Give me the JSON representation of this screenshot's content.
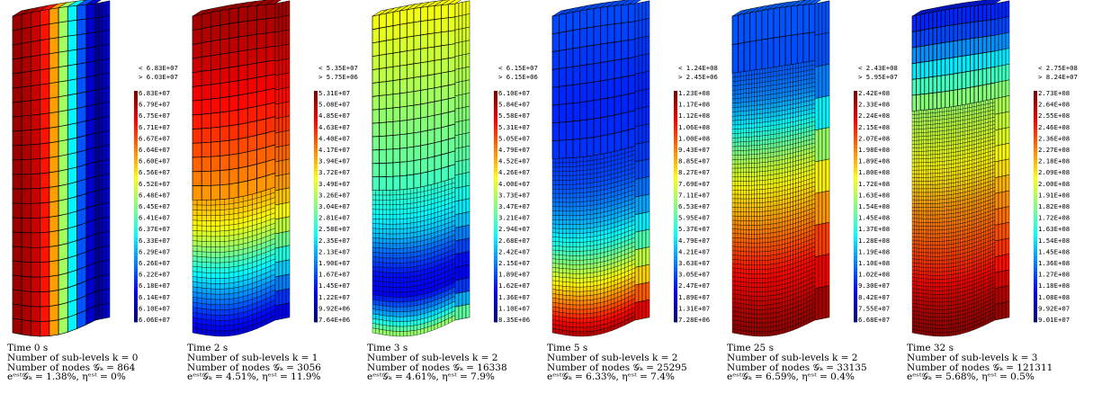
{
  "panels": [
    {
      "time": "Time 0 s",
      "sublevels": "Number of sub-levels k = 0",
      "nodes": "Number of nodes 𝒢ₖ = 864",
      "errors": "eᵉˢᵗ𝒢ₖ = 1.38%, ηᵉˢᵗ = 0%",
      "legend_over": "< 6.83E+07",
      "legend_under": "> 6.03E+07",
      "legend_ticks": [
        "6.83E+07",
        "6.79E+07",
        "6.75E+07",
        "6.71E+07",
        "6.67E+07",
        "6.64E+07",
        "6.60E+07",
        "6.56E+07",
        "6.52E+07",
        "6.48E+07",
        "6.45E+07",
        "6.41E+07",
        "6.37E+07",
        "6.33E+07",
        "6.29E+07",
        "6.26E+07",
        "6.22E+07",
        "6.18E+07",
        "6.14E+07",
        "6.10E+07",
        "6.06E+07"
      ]
    },
    {
      "time": "Time 2 s",
      "sublevels": "Number of sub-levels k = 1",
      "nodes": "Number of nodes 𝒢ₖ = 3056",
      "errors": "eᵉˢᵗ𝒢ₖ = 4.51%, ηᵉˢᵗ = 11.9%",
      "legend_over": "< 5.35E+07",
      "legend_under": "> 5.75E+06",
      "legend_ticks": [
        "5.31E+07",
        "5.08E+07",
        "4.85E+07",
        "4.63E+07",
        "4.40E+07",
        "4.17E+07",
        "3.94E+07",
        "3.72E+07",
        "3.49E+07",
        "3.26E+07",
        "3.04E+07",
        "2.81E+07",
        "2.58E+07",
        "2.35E+07",
        "2.13E+07",
        "1.90E+07",
        "1.67E+07",
        "1.45E+07",
        "1.22E+07",
        "9.92E+06",
        "7.64E+06"
      ]
    },
    {
      "time": "Time 3 s",
      "sublevels": "Number of sub-levels k = 2",
      "nodes": "Number of nodes 𝒢ₖ = 16338",
      "errors": "eᵉˢᵗ𝒢ₖ = 4.61%, ηᵉˢᵗ = 7.9%",
      "legend_over": "< 6.15E+07",
      "legend_under": "> 6.15E+06",
      "legend_ticks": [
        "6.10E+07",
        "5.84E+07",
        "5.58E+07",
        "5.31E+07",
        "5.05E+07",
        "4.79E+07",
        "4.52E+07",
        "4.26E+07",
        "4.00E+07",
        "3.73E+07",
        "3.47E+07",
        "3.21E+07",
        "2.94E+07",
        "2.68E+07",
        "2.42E+07",
        "2.15E+07",
        "1.89E+07",
        "1.62E+07",
        "1.36E+07",
        "1.10E+07",
        "8.35E+06"
      ]
    },
    {
      "time": "Time 5 s",
      "sublevels": "Number of sub-levels k = 2",
      "nodes": "Number of nodes 𝒢ₖ = 25295",
      "errors": "eᵉˢᵗ𝒢ₖ = 6.33%, ηᵉˢᵗ = 7.4%",
      "legend_over": "< 1.24E+08",
      "legend_under": "> 2.45E+06",
      "legend_ticks": [
        "1.23E+08",
        "1.17E+08",
        "1.12E+08",
        "1.06E+08",
        "1.00E+08",
        "9.43E+07",
        "8.85E+07",
        "8.27E+07",
        "7.69E+07",
        "7.11E+07",
        "6.53E+07",
        "5.95E+07",
        "5.37E+07",
        "4.79E+07",
        "4.21E+07",
        "3.63E+07",
        "3.05E+07",
        "2.47E+07",
        "1.89E+07",
        "1.31E+07",
        "7.28E+06"
      ]
    },
    {
      "time": "Time 25 s",
      "sublevels": "Number of sub-levels k = 2",
      "nodes": "Number of nodes 𝒢ₖ = 33135",
      "errors": "eᵉˢᵗ𝒢ₖ = 6.59%, ηᵉˢᵗ = 0.4%",
      "legend_over": "< 2.43E+08",
      "legend_under": "> 5.95E+07",
      "legend_ticks": [
        "2.42E+08",
        "2.33E+08",
        "2.24E+08",
        "2.15E+08",
        "2.07E+08",
        "1.98E+08",
        "1.89E+08",
        "1.80E+08",
        "1.72E+08",
        "1.63E+08",
        "1.54E+08",
        "1.45E+08",
        "1.37E+08",
        "1.28E+08",
        "1.19E+08",
        "1.10E+08",
        "1.02E+08",
        "9.30E+07",
        "8.42E+07",
        "7.55E+07",
        "6.68E+07"
      ]
    },
    {
      "time": "Time 32 s",
      "sublevels": "Number of sub-levels k = 3",
      "nodes": "Number of nodes 𝒢ₖ = 121311",
      "errors": "eᵉˢᵗ𝒢ₖ = 5.68%, ηᵉˢᵗ = 0.5%",
      "legend_over": "< 2.75E+08",
      "legend_under": "> 8.24E+07",
      "legend_ticks": [
        "2.73E+08",
        "2.64E+08",
        "2.55E+08",
        "2.46E+08",
        "2.36E+08",
        "2.27E+08",
        "2.18E+08",
        "2.09E+08",
        "2.00E+08",
        "1.91E+08",
        "1.82E+08",
        "1.72E+08",
        "1.63E+08",
        "1.54E+08",
        "1.45E+08",
        "1.36E+08",
        "1.27E+08",
        "1.18E+08",
        "1.08E+08",
        "9.92E+07",
        "9.01E+07"
      ]
    }
  ],
  "colormap": "jet",
  "field_profiles": [
    {
      "type": "radial",
      "profile": [
        0.98,
        0.97,
        0.95,
        0.92,
        0.85,
        0.72,
        0.55,
        0.4,
        0.25,
        0.12,
        0.02
      ]
    },
    {
      "type": "vertical",
      "profile": [
        0.97,
        0.95,
        0.93,
        0.9,
        0.87,
        0.84,
        0.8,
        0.76,
        0.72,
        0.65,
        0.55,
        0.42,
        0.3,
        0.18,
        0.08
      ]
    },
    {
      "type": "vertical",
      "profile": [
        0.62,
        0.6,
        0.58,
        0.56,
        0.54,
        0.52,
        0.5,
        0.48,
        0.46,
        0.42,
        0.38,
        0.32,
        0.22,
        0.14,
        0.12,
        0.3,
        0.55
      ]
    },
    {
      "type": "vertical",
      "profile": [
        0.2,
        0.19,
        0.18,
        0.17,
        0.16,
        0.16,
        0.17,
        0.18,
        0.2,
        0.25,
        0.32,
        0.42,
        0.55,
        0.68,
        0.82,
        0.95
      ]
    },
    {
      "type": "vertical",
      "profile": [
        0.22,
        0.2,
        0.2,
        0.22,
        0.26,
        0.34,
        0.45,
        0.55,
        0.62,
        0.68,
        0.74,
        0.8,
        0.86,
        0.9,
        0.95,
        0.98
      ]
    },
    {
      "type": "vertical",
      "profile": [
        0.15,
        0.18,
        0.28,
        0.4,
        0.5,
        0.55,
        0.58,
        0.62,
        0.66,
        0.72,
        0.76,
        0.8,
        0.84,
        0.9,
        0.95,
        0.98
      ]
    }
  ],
  "refinement": [
    {
      "fine_from": 1.0,
      "cols": 9,
      "rows": 22
    },
    {
      "fine_from": 0.58,
      "cols": 9,
      "rows": 22,
      "fine_cols": 18,
      "fine_rows": 26
    },
    {
      "fine_from": 0.55,
      "cols": 12,
      "rows": 24,
      "fine_cols": 24,
      "fine_rows": 30
    },
    {
      "fine_from": 0.45,
      "cols": 12,
      "rows": 18,
      "fine_cols": 24,
      "fine_rows": 40
    },
    {
      "fine_from": 0.18,
      "cols": 14,
      "rows": 10,
      "fine_cols": 30,
      "fine_rows": 60
    },
    {
      "fine_from": 0.3,
      "cols": 20,
      "rows": 20,
      "fine_cols": 36,
      "fine_rows": 60
    }
  ]
}
